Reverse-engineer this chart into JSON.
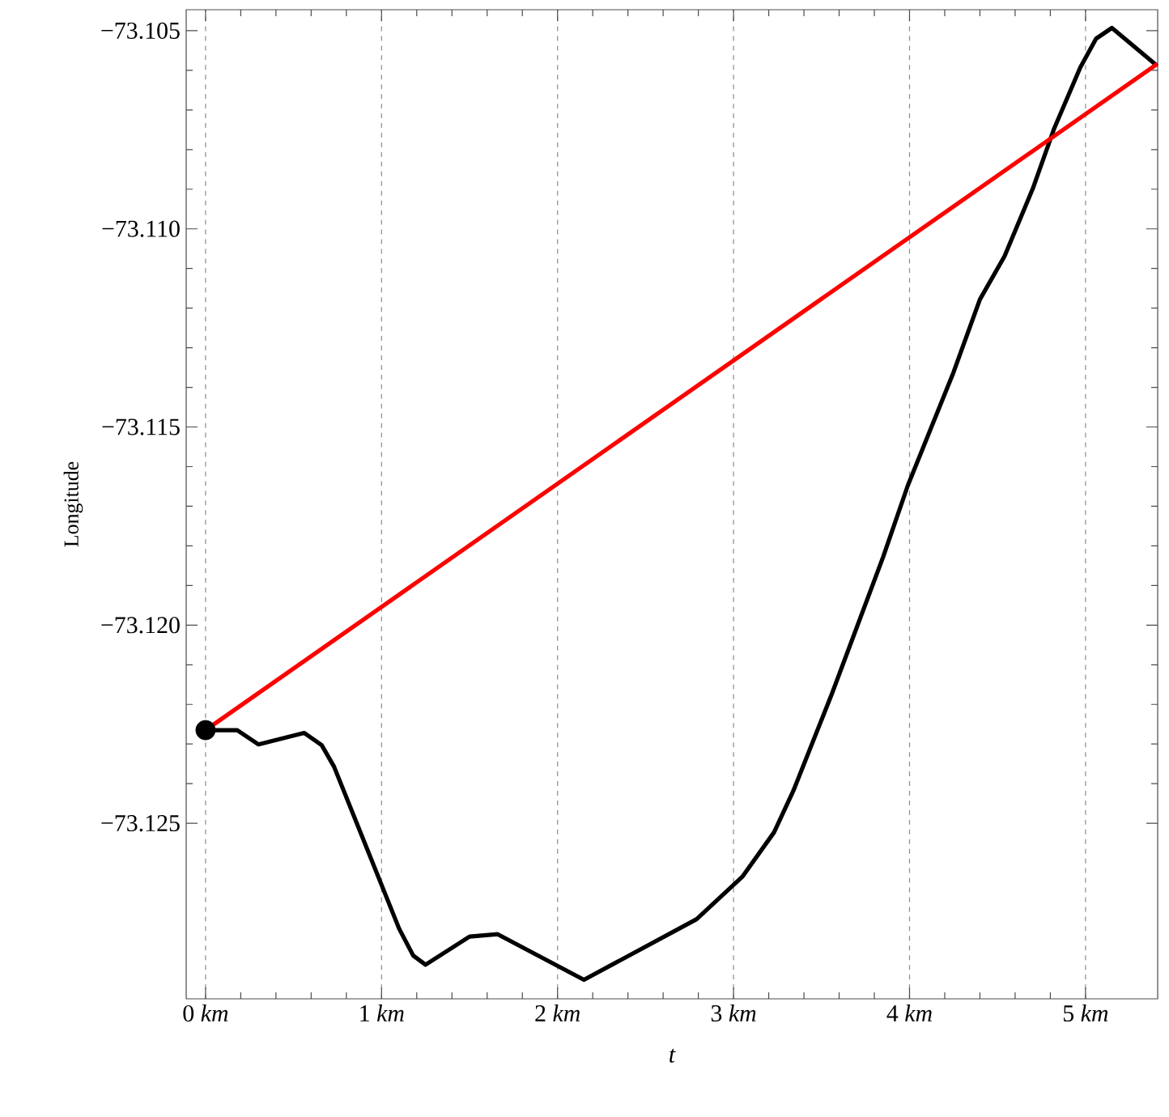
{
  "chart_data": {
    "type": "line",
    "xlabel": "t",
    "ylabel": "Longitude",
    "grid": "x",
    "xlim": [
      -0.11,
      5.41
    ],
    "ylim": [
      -73.12943,
      -73.10447
    ],
    "xticks": [
      {
        "value": 0,
        "label": "0 *km*"
      },
      {
        "value": 1,
        "label": "1 *km*"
      },
      {
        "value": 2,
        "label": "2 *km*"
      },
      {
        "value": 3,
        "label": "3 *km*"
      },
      {
        "value": 4,
        "label": "4 *km*"
      },
      {
        "value": 5,
        "label": "5 *km*"
      }
    ],
    "yticks": [
      {
        "value": -73.125,
        "label": "−73.125"
      },
      {
        "value": -73.12,
        "label": "−73.120"
      },
      {
        "value": -73.115,
        "label": "−73.115"
      },
      {
        "value": -73.11,
        "label": "−73.110"
      },
      {
        "value": -73.105,
        "label": "−73.105"
      }
    ],
    "line_style": "solid",
    "marker": "none",
    "series": [
      {
        "color": "#000000",
        "x": [
          0,
          0.18,
          0.3,
          0.56,
          0.66,
          0.73,
          1.1,
          1.18,
          1.25,
          1.5,
          1.66,
          2.15,
          2.79,
          3.05,
          3.23,
          3.34,
          3.56,
          3.85,
          3.99,
          4.25,
          4.4,
          4.54,
          4.7,
          4.82,
          4.97,
          5.06,
          5.15,
          5.4
        ],
        "values": [
          -73.12265,
          -73.12265,
          -73.12301,
          -73.12272,
          -73.12303,
          -73.12357,
          -73.12766,
          -73.12834,
          -73.12857,
          -73.12786,
          -73.1278,
          -73.12895,
          -73.12742,
          -73.12635,
          -73.12523,
          -73.12418,
          -73.12172,
          -73.11828,
          -73.11648,
          -73.11362,
          -73.11178,
          -73.11069,
          -73.10899,
          -73.10749,
          -73.10593,
          -73.1052,
          -73.10493,
          -73.10586
        ]
      },
      {
        "color": "#ff0000",
        "x": [
          0,
          5.4
        ],
        "values": [
          -73.12265,
          -73.10586
        ]
      },
      {
        "type": "scatter",
        "color": "#000000",
        "marker": "circle",
        "x": [
          0
        ],
        "values": [
          -73.12265
        ]
      }
    ]
  }
}
